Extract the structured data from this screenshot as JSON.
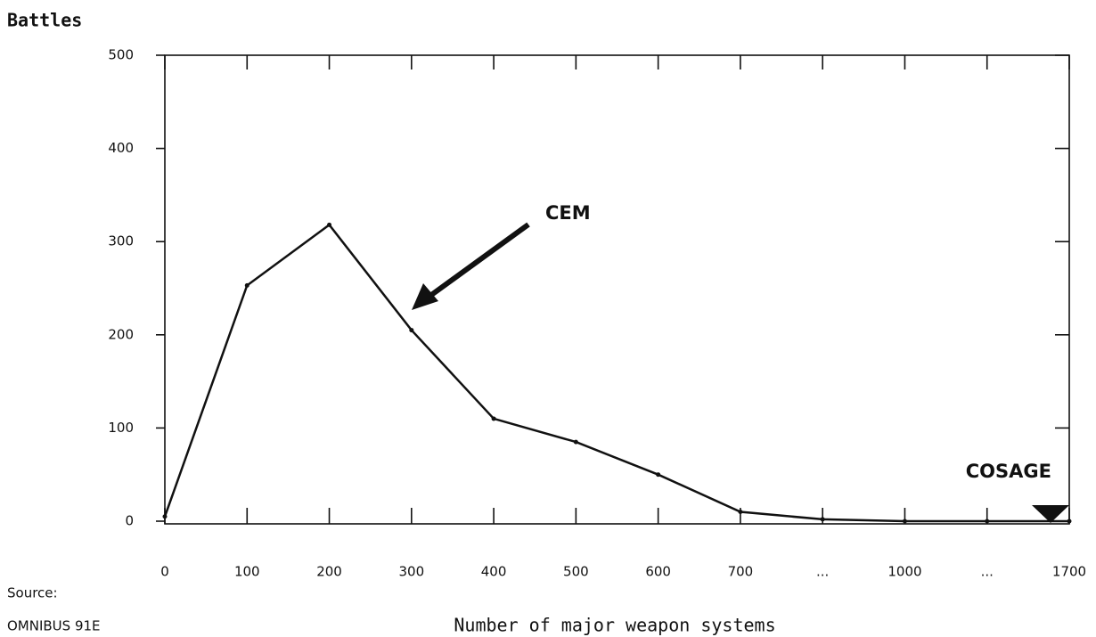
{
  "chart_data": {
    "type": "line",
    "title": "Battles",
    "x_label": "Number of major weapon systems",
    "categories": [
      "0",
      "100",
      "200",
      "300",
      "400",
      "500",
      "600",
      "700",
      "...",
      "1000",
      "...",
      "1700"
    ],
    "series": [
      {
        "name": "Battles",
        "color": "#111111",
        "values": [
          5,
          253,
          318,
          205,
          110,
          85,
          50,
          10,
          2,
          0,
          0,
          0
        ]
      }
    ],
    "ylim": [
      0,
      500
    ],
    "yticks": [
      0,
      100,
      200,
      300,
      400,
      500
    ],
    "annotations": [
      "CEM",
      "COSAGE"
    ],
    "source_label": "Source:",
    "source": "OMNIBUS 91E"
  }
}
